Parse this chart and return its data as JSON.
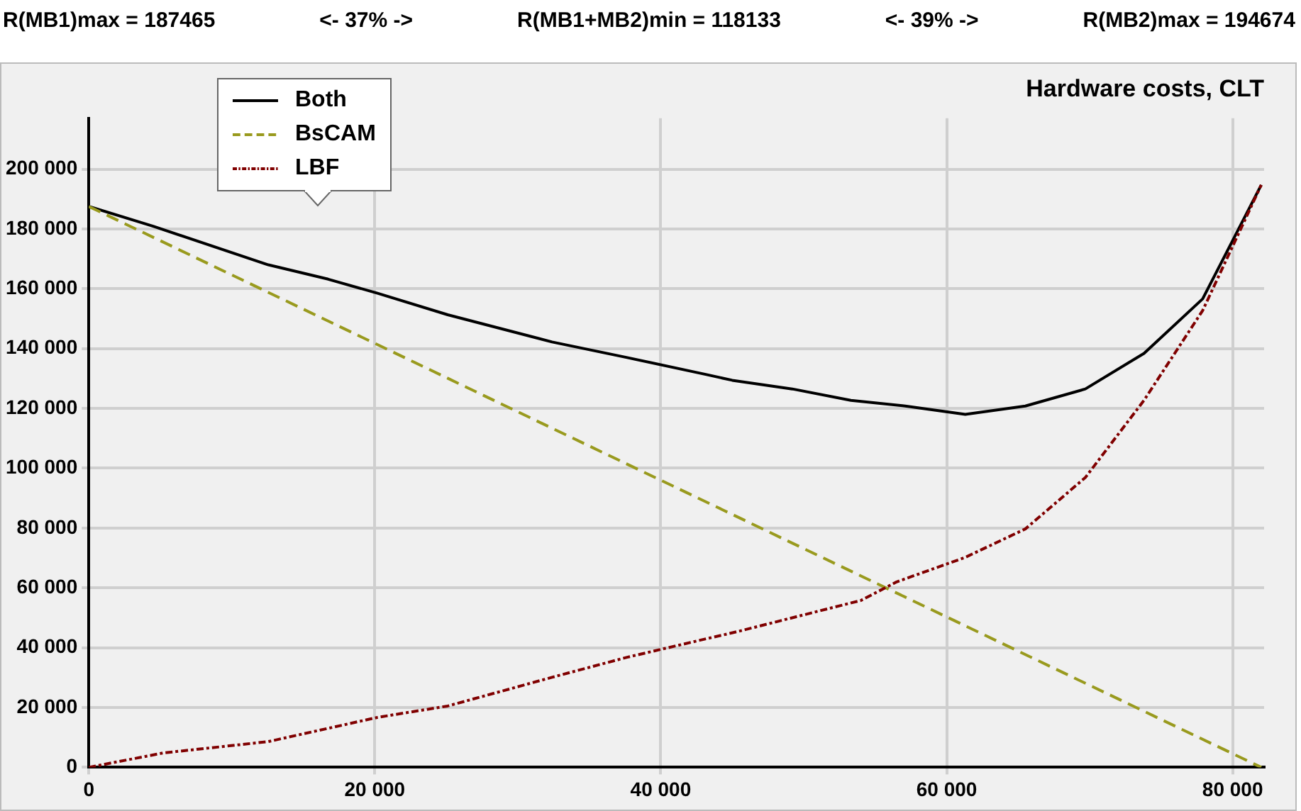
{
  "chart_data": {
    "type": "line",
    "title": "Hardware costs, CLT",
    "annotations": [
      "R(MB1)max = 187465",
      "<- 37% ->",
      "R(MB1+MB2)min = 118133",
      "<- 39% ->",
      "R(MB2)max = 194674"
    ],
    "series": [
      {
        "name": "Both",
        "color": "#000000",
        "line_style": "solid",
        "x": [
          0,
          4500,
          12550,
          16740,
          20190,
          25100,
          32400,
          37650,
          43200,
          45000,
          49200,
          53300,
          57100,
          61300,
          65500,
          69700,
          73800,
          77900,
          82000
        ],
        "values": [
          187500,
          180900,
          168000,
          163200,
          158500,
          151300,
          142200,
          137000,
          131300,
          129400,
          126500,
          122700,
          120800,
          118000,
          120800,
          126500,
          138400,
          156600,
          194700
        ]
      },
      {
        "name": "BsCAM",
        "color": "#999a1e",
        "line_style": "dashed",
        "x": [
          0,
          41000,
          82000
        ],
        "values": [
          187500,
          93700,
          0
        ]
      },
      {
        "name": "LBF",
        "color": "#800000",
        "line_style": "dashdot",
        "x": [
          0,
          5200,
          12550,
          20190,
          25100,
          32400,
          37650,
          43200,
          45300,
          54000,
          56500,
          61300,
          65500,
          69700,
          73800,
          77900,
          82000
        ],
        "values": [
          0,
          4800,
          8600,
          16700,
          20500,
          30100,
          36800,
          43000,
          45300,
          55800,
          62000,
          70200,
          79700,
          96900,
          122700,
          152700,
          194700
        ]
      }
    ],
    "xlim": [
      0,
      82200
    ],
    "xticks": [
      0,
      {
        "value": 20000,
        "label": "20 000"
      },
      {
        "value": 40000,
        "label": "40 000"
      },
      {
        "value": 60000,
        "label": "60 000"
      },
      {
        "value": 80000,
        "label": "80 000"
      }
    ],
    "ylim": [
      0,
      217000
    ],
    "yticks": [
      0,
      {
        "value": 20000,
        "label": "20 000"
      },
      {
        "value": 40000,
        "label": "40 000"
      },
      {
        "value": 60000,
        "label": "60 000"
      },
      {
        "value": 80000,
        "label": "80 000"
      },
      {
        "value": 100000,
        "label": "100 000"
      },
      {
        "value": 120000,
        "label": "120 000"
      },
      {
        "value": 140000,
        "label": "140 000"
      },
      {
        "value": 160000,
        "label": "160 000"
      },
      {
        "value": 180000,
        "label": "180 000"
      },
      {
        "value": 200000,
        "label": "200 000"
      }
    ],
    "grid": true,
    "legend": "top left",
    "marker": "none"
  }
}
